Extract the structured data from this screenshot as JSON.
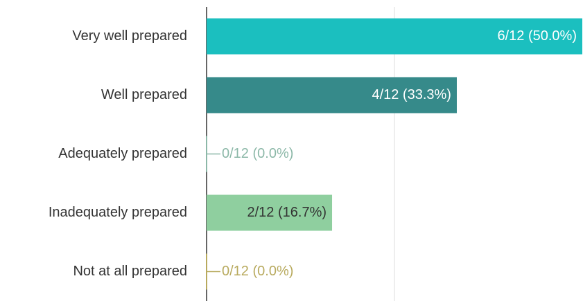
{
  "chart_data": {
    "type": "bar",
    "orientation": "horizontal",
    "categories": [
      "Very well prepared",
      "Well prepared",
      "Adequately prepared",
      "Inadequately prepared",
      "Not at all prepared"
    ],
    "values": [
      50,
      33.3,
      0,
      16.7,
      0
    ],
    "value_labels": [
      "6/12 (50.0%)",
      "4/12 (33.3%)",
      "0/12 (0.0%)",
      "2/12 (16.7%)",
      "0/12 (0.0%)"
    ],
    "colors": [
      "#1bbfbf",
      "#368a8a",
      "#8cb8a8",
      "#8fcf9f",
      "#b8aa5e"
    ],
    "xlim": [
      0,
      50
    ],
    "xticks": [
      0,
      25
    ],
    "grid": true
  }
}
